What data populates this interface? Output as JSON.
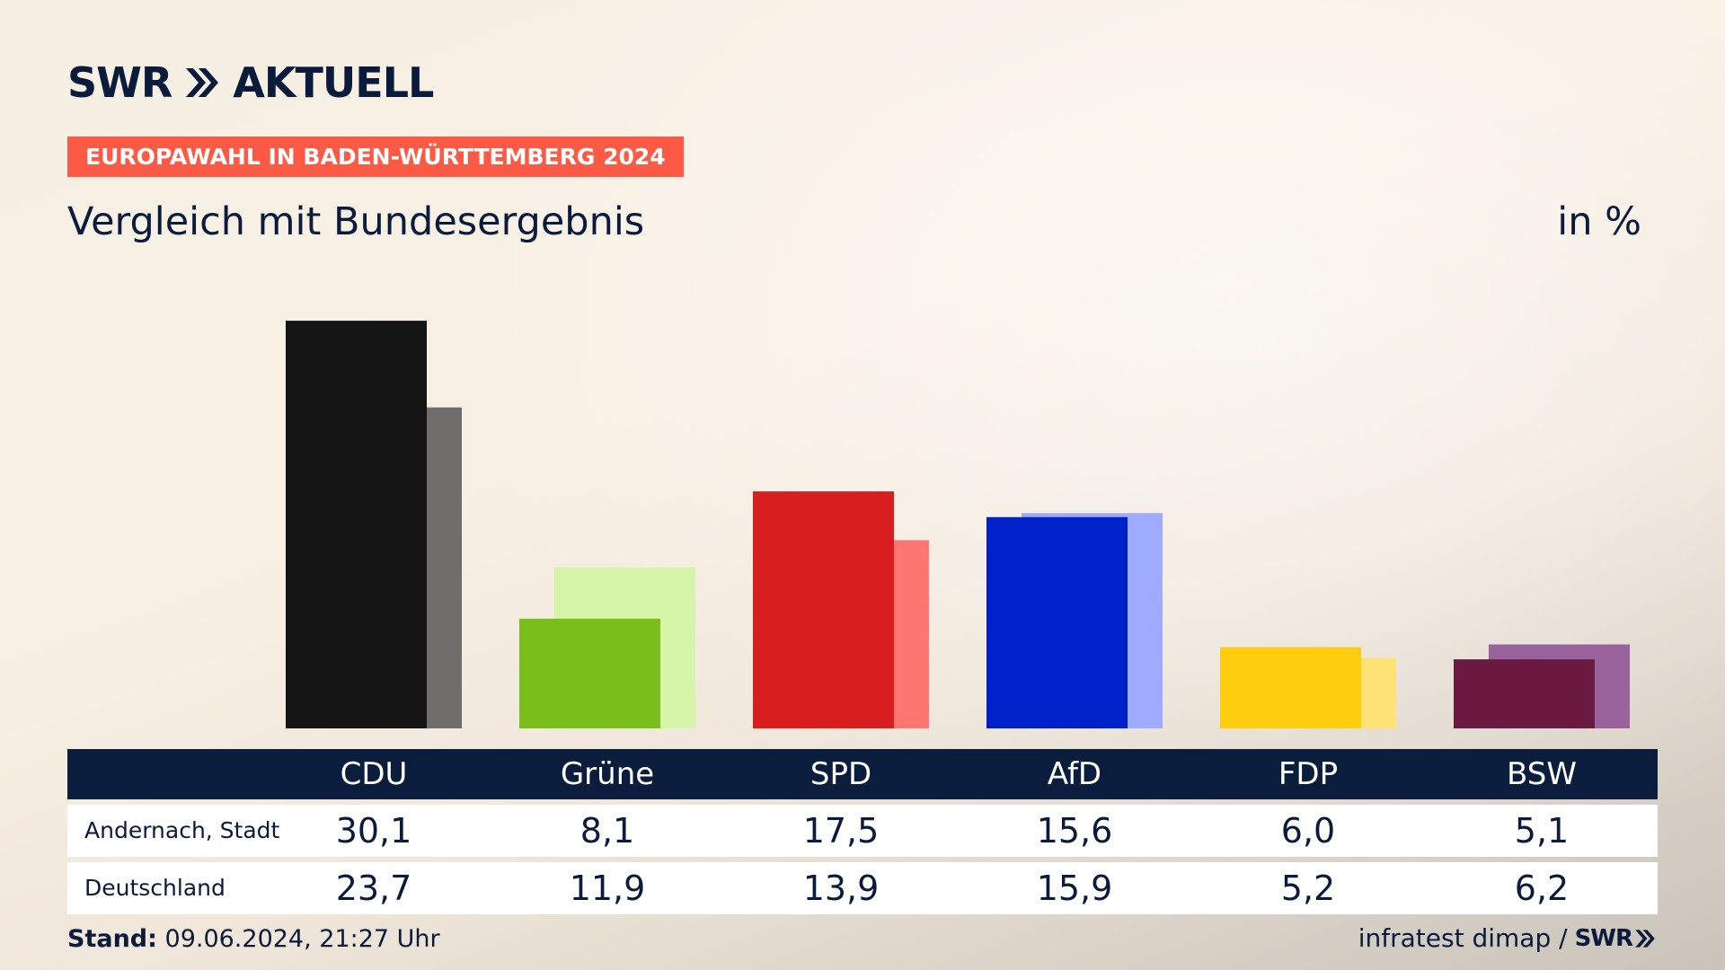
{
  "brand": {
    "logo_text": "SWR",
    "logo_suffix": "AKTUELL",
    "brand_color": "#0b1b3c",
    "accent_color": "#fd5a46"
  },
  "banner": "EUROPAWAHL IN BADEN-WÜRTTEMBERG 2024",
  "subtitle": "Vergleich mit Bundesergebnis",
  "unit_label": "in %",
  "chart_data": {
    "type": "bar",
    "categories": [
      "CDU",
      "Grüne",
      "SPD",
      "AfD",
      "FDP",
      "BSW"
    ],
    "series": [
      {
        "name": "Andernach, Stadt",
        "values": [
          30.1,
          8.1,
          17.5,
          15.6,
          6.0,
          5.1
        ],
        "colors": [
          "#141414",
          "#7abe1c",
          "#d81e1e",
          "#0021c9",
          "#ffcd0f",
          "#6a1a40"
        ]
      },
      {
        "name": "Deutschland",
        "values": [
          23.7,
          11.9,
          13.9,
          15.9,
          5.2,
          6.2
        ],
        "colors": [
          "#706e6c",
          "#d6f5a8",
          "#ff7571",
          "#9eabff",
          "#ffe277",
          "#99629a"
        ]
      }
    ],
    "display_values": [
      [
        "30,1",
        "8,1",
        "17,5",
        "15,6",
        "6,0",
        "5,1"
      ],
      [
        "23,7",
        "11,9",
        "13,9",
        "15,9",
        "5,2",
        "6,2"
      ]
    ],
    "ylim": [
      0,
      31.5
    ]
  },
  "table": {
    "row_labels": [
      "Andernach, Stadt",
      "Deutschland"
    ]
  },
  "footer": {
    "stand_label": "Stand:",
    "stand_value": "09.06.2024, 21:27 Uhr",
    "source": "infratest dimap /",
    "source_logo": "SWR"
  }
}
